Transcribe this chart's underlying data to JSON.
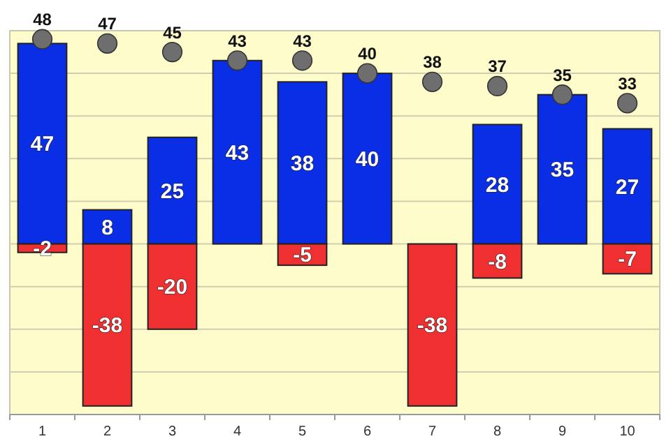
{
  "chart_data": {
    "type": "bar",
    "stacked": true,
    "categories": [
      "1",
      "2",
      "3",
      "4",
      "5",
      "6",
      "7",
      "8",
      "9",
      "10"
    ],
    "series": [
      {
        "color": "#0a2ee6",
        "values": [
          47,
          8,
          25,
          43,
          38,
          40,
          null,
          28,
          35,
          27
        ]
      },
      {
        "color": "#f03030",
        "values": [
          -2,
          -38,
          -20,
          null,
          -5,
          null,
          -38,
          -8,
          null,
          -7
        ]
      },
      {
        "type": "scatter",
        "color": "#6e6e6e",
        "x": [
          "1",
          "2",
          "3",
          "4",
          "5",
          "6",
          "7",
          "8",
          "9",
          "10"
        ],
        "values": [
          48,
          47,
          45,
          43,
          43,
          40,
          38,
          37,
          35,
          33
        ]
      }
    ],
    "ylim": [
      -40,
      50
    ],
    "yticks": [
      {
        "value": -40,
        "label": null
      },
      {
        "value": -30,
        "label": null
      },
      {
        "value": -20,
        "label": null
      },
      {
        "value": -10,
        "label": null
      },
      {
        "value": 0,
        "label": null
      },
      {
        "value": 10,
        "label": null
      },
      {
        "value": 20,
        "label": null
      },
      {
        "value": 30,
        "label": null
      },
      {
        "value": 40,
        "label": null
      },
      {
        "value": 50,
        "label": null
      }
    ],
    "grid": "y",
    "data_labels": true,
    "marker": "circle",
    "tick_labels": "x"
  }
}
